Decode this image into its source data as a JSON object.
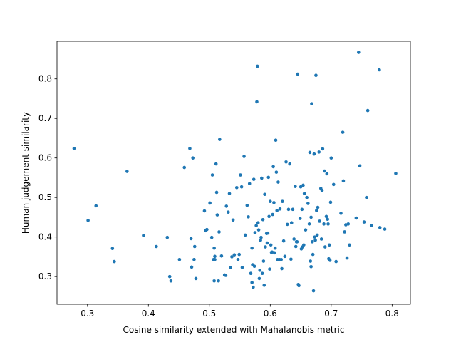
{
  "chart_data": {
    "type": "scatter",
    "title": "",
    "xlabel": "Cosine similarity extended with Mahalanobis metric",
    "ylabel": "Human judgement similarity",
    "xlim": [
      0.25,
      0.83
    ],
    "ylim": [
      0.23,
      0.895
    ],
    "xticks": [
      "0.3",
      "0.4",
      "0.5",
      "0.6",
      "0.7",
      "0.8"
    ],
    "yticks": [
      "0.3",
      "0.4",
      "0.5",
      "0.6",
      "0.7",
      "0.8"
    ],
    "grid": false,
    "marker_color": "#1f77b4",
    "series": [
      {
        "points": [
          [
            0.278,
            0.624
          ],
          [
            0.301,
            0.442
          ],
          [
            0.314,
            0.479
          ],
          [
            0.341,
            0.371
          ],
          [
            0.344,
            0.338
          ],
          [
            0.365,
            0.566
          ],
          [
            0.392,
            0.404
          ],
          [
            0.413,
            0.376
          ],
          [
            0.431,
            0.399
          ],
          [
            0.435,
            0.3
          ],
          [
            0.437,
            0.289
          ],
          [
            0.451,
            0.343
          ],
          [
            0.459,
            0.576
          ],
          [
            0.468,
            0.624
          ],
          [
            0.47,
            0.396
          ],
          [
            0.471,
            0.324
          ],
          [
            0.473,
            0.6
          ],
          [
            0.475,
            0.343
          ],
          [
            0.476,
            0.376
          ],
          [
            0.478,
            0.295
          ],
          [
            0.492,
            0.466
          ],
          [
            0.494,
            0.416
          ],
          [
            0.496,
            0.419
          ],
          [
            0.501,
            0.486
          ],
          [
            0.504,
            0.399
          ],
          [
            0.505,
            0.557
          ],
          [
            0.507,
            0.343
          ],
          [
            0.508,
            0.289
          ],
          [
            0.508,
            0.372
          ],
          [
            0.509,
            0.351
          ],
          [
            0.509,
            0.343
          ],
          [
            0.511,
            0.585
          ],
          [
            0.512,
            0.513
          ],
          [
            0.513,
            0.456
          ],
          [
            0.515,
            0.289
          ],
          [
            0.516,
            0.413
          ],
          [
            0.517,
            0.647
          ],
          [
            0.52,
            0.352
          ],
          [
            0.525,
            0.304
          ],
          [
            0.527,
            0.303
          ],
          [
            0.528,
            0.478
          ],
          [
            0.531,
            0.463
          ],
          [
            0.533,
            0.51
          ],
          [
            0.535,
            0.323
          ],
          [
            0.537,
            0.35
          ],
          [
            0.539,
            0.443
          ],
          [
            0.541,
            0.355
          ],
          [
            0.545,
            0.525
          ],
          [
            0.547,
            0.343
          ],
          [
            0.549,
            0.356
          ],
          [
            0.551,
            0.557
          ],
          [
            0.553,
            0.527
          ],
          [
            0.554,
            0.323
          ],
          [
            0.557,
            0.604
          ],
          [
            0.559,
            0.405
          ],
          [
            0.562,
            0.48
          ],
          [
            0.564,
            0.451
          ],
          [
            0.566,
            0.535
          ],
          [
            0.568,
            0.308
          ],
          [
            0.57,
            0.285
          ],
          [
            0.57,
            0.372
          ],
          [
            0.571,
            0.33
          ],
          [
            0.572,
            0.273
          ],
          [
            0.573,
            0.546
          ],
          [
            0.574,
            0.326
          ],
          [
            0.575,
            0.411
          ],
          [
            0.577,
            0.429
          ],
          [
            0.578,
            0.742
          ],
          [
            0.579,
            0.832
          ],
          [
            0.58,
            0.436
          ],
          [
            0.581,
            0.418
          ],
          [
            0.582,
            0.295
          ],
          [
            0.583,
            0.316
          ],
          [
            0.584,
            0.392
          ],
          [
            0.585,
            0.399
          ],
          [
            0.586,
            0.549
          ],
          [
            0.587,
            0.308
          ],
          [
            0.588,
            0.444
          ],
          [
            0.589,
            0.339
          ],
          [
            0.59,
            0.278
          ],
          [
            0.591,
            0.508
          ],
          [
            0.592,
            0.375
          ],
          [
            0.594,
            0.409
          ],
          [
            0.595,
            0.385
          ],
          [
            0.596,
            0.41
          ],
          [
            0.597,
            0.551
          ],
          [
            0.598,
            0.452
          ],
          [
            0.599,
            0.319
          ],
          [
            0.6,
            0.49
          ],
          [
            0.601,
            0.38
          ],
          [
            0.602,
            0.361
          ],
          [
            0.603,
            0.362
          ],
          [
            0.604,
            0.457
          ],
          [
            0.605,
            0.578
          ],
          [
            0.606,
            0.487
          ],
          [
            0.607,
            0.36
          ],
          [
            0.608,
            0.372
          ],
          [
            0.609,
            0.645
          ],
          [
            0.61,
            0.564
          ],
          [
            0.611,
            0.467
          ],
          [
            0.612,
            0.343
          ],
          [
            0.613,
            0.539
          ],
          [
            0.615,
            0.343
          ],
          [
            0.616,
            0.471
          ],
          [
            0.618,
            0.343
          ],
          [
            0.619,
            0.32
          ],
          [
            0.62,
            0.49
          ],
          [
            0.622,
            0.39
          ],
          [
            0.624,
            0.351
          ],
          [
            0.626,
            0.59
          ],
          [
            0.628,
            0.432
          ],
          [
            0.63,
            0.47
          ],
          [
            0.632,
            0.585
          ],
          [
            0.634,
            0.344
          ],
          [
            0.635,
            0.436
          ],
          [
            0.637,
            0.47
          ],
          [
            0.639,
            0.395
          ],
          [
            0.641,
            0.528
          ],
          [
            0.642,
            0.376
          ],
          [
            0.643,
            0.388
          ],
          [
            0.644,
            0.388
          ],
          [
            0.645,
            0.812
          ],
          [
            0.646,
            0.28
          ],
          [
            0.647,
            0.277
          ],
          [
            0.649,
            0.447
          ],
          [
            0.65,
            0.527
          ],
          [
            0.651,
            0.37
          ],
          [
            0.652,
            0.47
          ],
          [
            0.653,
            0.375
          ],
          [
            0.654,
            0.531
          ],
          [
            0.655,
            0.38
          ],
          [
            0.656,
            0.51
          ],
          [
            0.658,
            0.418
          ],
          [
            0.66,
            0.5
          ],
          [
            0.662,
            0.485
          ],
          [
            0.664,
            0.433
          ],
          [
            0.665,
            0.614
          ],
          [
            0.666,
            0.339
          ],
          [
            0.667,
            0.325
          ],
          [
            0.667,
            0.45
          ],
          [
            0.668,
            0.737
          ],
          [
            0.669,
            0.388
          ],
          [
            0.67,
            0.356
          ],
          [
            0.671,
            0.264
          ],
          [
            0.672,
            0.61
          ],
          [
            0.673,
            0.4
          ],
          [
            0.674,
            0.392
          ],
          [
            0.675,
            0.809
          ],
          [
            0.676,
            0.467
          ],
          [
            0.677,
            0.405
          ],
          [
            0.678,
            0.475
          ],
          [
            0.68,
            0.615
          ],
          [
            0.681,
            0.44
          ],
          [
            0.683,
            0.523
          ],
          [
            0.684,
            0.395
          ],
          [
            0.685,
            0.518
          ],
          [
            0.686,
            0.623
          ],
          [
            0.688,
            0.433
          ],
          [
            0.689,
            0.567
          ],
          [
            0.69,
            0.375
          ],
          [
            0.692,
            0.452
          ],
          [
            0.693,
            0.56
          ],
          [
            0.694,
            0.445
          ],
          [
            0.695,
            0.433
          ],
          [
            0.696,
            0.345
          ],
          [
            0.697,
            0.38
          ],
          [
            0.698,
            0.341
          ],
          [
            0.699,
            0.488
          ],
          [
            0.7,
            0.6
          ],
          [
            0.704,
            0.533
          ],
          [
            0.708,
            0.338
          ],
          [
            0.716,
            0.46
          ],
          [
            0.719,
            0.665
          ],
          [
            0.72,
            0.542
          ],
          [
            0.722,
            0.413
          ],
          [
            0.724,
            0.431
          ],
          [
            0.726,
            0.347
          ],
          [
            0.728,
            0.433
          ],
          [
            0.73,
            0.38
          ],
          [
            0.741,
            0.448
          ],
          [
            0.745,
            0.867
          ],
          [
            0.747,
            0.58
          ],
          [
            0.754,
            0.438
          ],
          [
            0.758,
            0.5
          ],
          [
            0.76,
            0.72
          ],
          [
            0.766,
            0.429
          ],
          [
            0.779,
            0.823
          ],
          [
            0.78,
            0.424
          ],
          [
            0.788,
            0.42
          ],
          [
            0.806,
            0.561
          ]
        ]
      }
    ]
  }
}
